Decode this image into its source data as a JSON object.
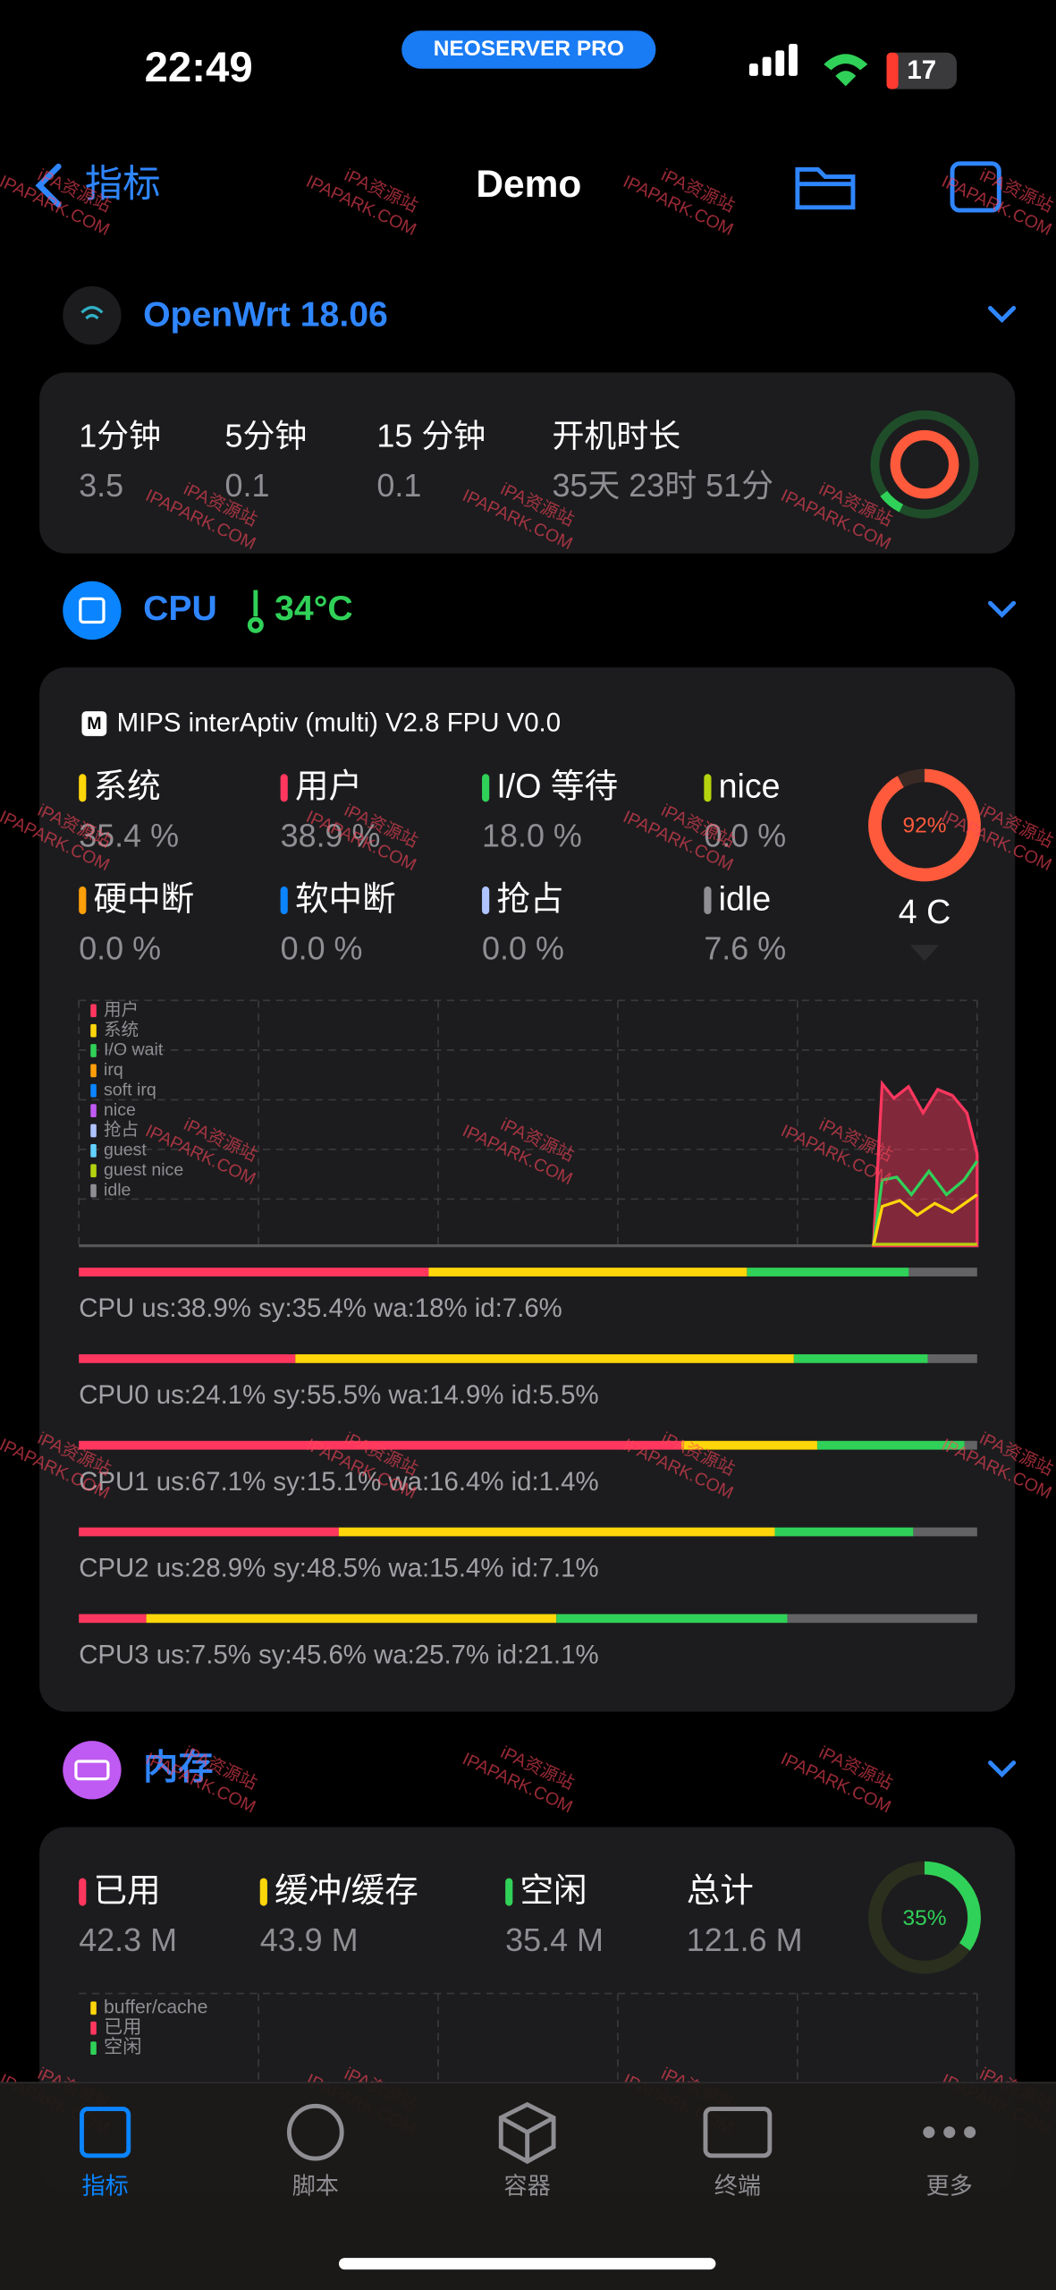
{
  "status": {
    "time": "22:49",
    "badge": "NEOSERVER PRO",
    "battery": "17"
  },
  "nav": {
    "back": "指标",
    "title": "Demo"
  },
  "router": {
    "name": "OpenWrt 18.06"
  },
  "load": {
    "labels": [
      "1分钟",
      "5分钟",
      "15 分钟",
      "开机时长"
    ],
    "values": [
      "3.5",
      "0.1",
      "0.1",
      "35天 23时 51分"
    ]
  },
  "cpu": {
    "title": "CPU",
    "temperature": "34°C",
    "model_badge": "M",
    "model": "MIPS interAptiv (multi) V2.8  FPU V0.0",
    "stats": [
      {
        "label": "系统",
        "value": "35.4 %",
        "color": "#ffd60a"
      },
      {
        "label": "用户",
        "value": "38.9 %",
        "color": "#ff375f"
      },
      {
        "label": "I/O 等待",
        "value": "18.0 %",
        "color": "#30d158"
      },
      {
        "label": "nice",
        "value": "0.0 %",
        "color": "#b5d30e"
      },
      {
        "label": "硬中断",
        "value": "0.0 %",
        "color": "#ff9f0a"
      },
      {
        "label": "软中断",
        "value": "0.0 %",
        "color": "#0a84ff"
      },
      {
        "label": "抢占",
        "value": "0.0 %",
        "color": "#b0c4ff"
      },
      {
        "label": "idle",
        "value": "7.6 %",
        "color": "#8e8e93"
      }
    ],
    "gauge": {
      "value": 92,
      "label": "92%"
    },
    "cores": "4 C",
    "legend": [
      {
        "name": "用户",
        "color": "#ff375f"
      },
      {
        "name": "系统",
        "color": "#ffd60a"
      },
      {
        "name": "I/O wait",
        "color": "#30d158"
      },
      {
        "name": "irq",
        "color": "#ff9f0a"
      },
      {
        "name": "soft irq",
        "color": "#0a84ff"
      },
      {
        "name": "nice",
        "color": "#bf5af2"
      },
      {
        "name": "抢占",
        "color": "#b0c4ff"
      },
      {
        "name": "guest",
        "color": "#64d2ff"
      },
      {
        "name": "guest nice",
        "color": "#b5d30e"
      },
      {
        "name": "idle",
        "color": "#8e8e93"
      }
    ],
    "bars": [
      {
        "label": "CPU us:38.9% sy:35.4% wa:18% id:7.6%",
        "us": 38.9,
        "sy": 35.4,
        "wa": 18,
        "id": 7.6
      },
      {
        "label": "CPU0 us:24.1% sy:55.5% wa:14.9% id:5.5%",
        "us": 24.1,
        "sy": 55.5,
        "wa": 14.9,
        "id": 5.5
      },
      {
        "label": "CPU1 us:67.1% sy:15.1% wa:16.4% id:1.4%",
        "us": 67.1,
        "sy": 15.1,
        "wa": 16.4,
        "id": 1.4
      },
      {
        "label": "CPU2 us:28.9% sy:48.5% wa:15.4% id:7.1%",
        "us": 28.9,
        "sy": 48.5,
        "wa": 15.4,
        "id": 7.1
      },
      {
        "label": "CPU3 us:7.5% sy:45.6% wa:25.7% id:21.1%",
        "us": 7.5,
        "sy": 45.6,
        "wa": 25.7,
        "id": 21.1
      }
    ]
  },
  "memory": {
    "title": "内存",
    "stats": [
      {
        "label": "已用",
        "value": "42.3 M",
        "color": "#ff375f"
      },
      {
        "label": "缓冲/缓存",
        "value": "43.9 M",
        "color": "#ffd60a"
      },
      {
        "label": "空闲",
        "value": "35.4 M",
        "color": "#30d158"
      },
      {
        "label": "总计",
        "value": "121.6 M"
      }
    ],
    "gauge": {
      "value": 35,
      "label": "35%"
    },
    "legend": [
      {
        "name": "buffer/cache",
        "color": "#ffd60a"
      },
      {
        "name": "已用",
        "color": "#ff375f"
      },
      {
        "name": "空闲",
        "color": "#30d158"
      }
    ]
  },
  "tabs": [
    "指标",
    "脚本",
    "容器",
    "终端",
    "更多"
  ],
  "watermark": [
    "iPA资源站",
    "IPAPARK.COM"
  ]
}
